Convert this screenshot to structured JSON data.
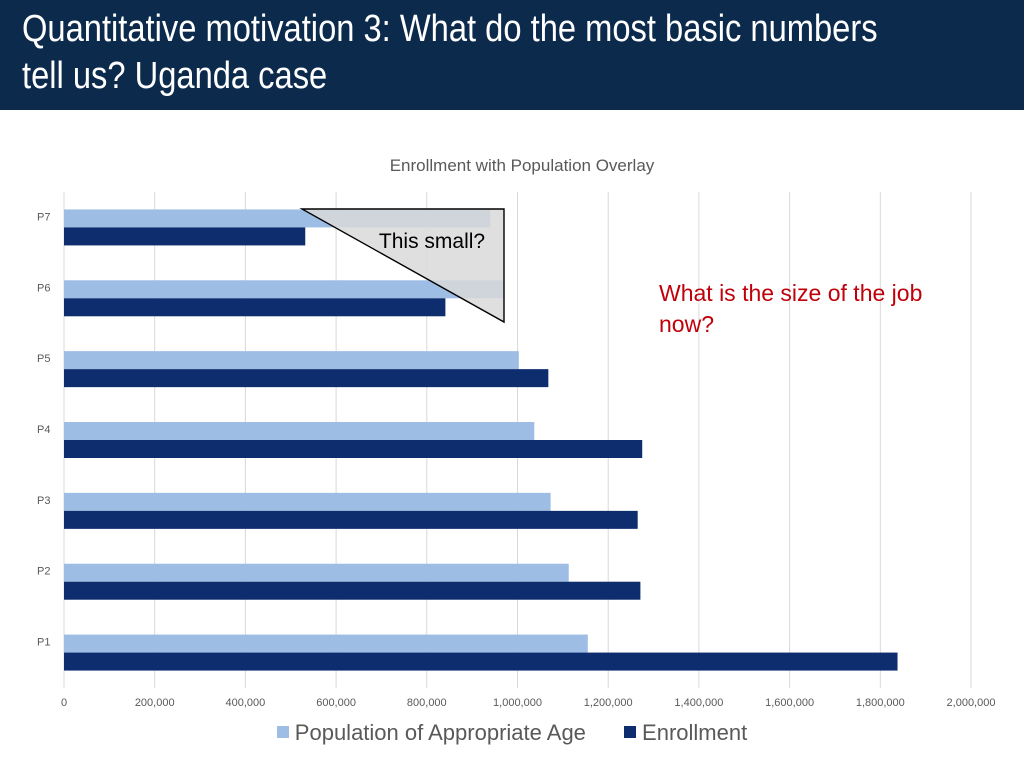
{
  "header": {
    "title_line1": "Quantitative motivation 3: What do the most basic numbers",
    "title_line2": "tell us? Uganda case"
  },
  "colors": {
    "header_bg": "#0c2a4c",
    "population": "#9dbde5",
    "enrollment": "#0e2d6e",
    "annotation": "#c0000a",
    "triangle_fill": "#d9d9d9"
  },
  "annotations": {
    "triangle_label": "This small?",
    "callout": "What is the size of the job now?"
  },
  "chart_data": {
    "type": "bar",
    "orientation": "horizontal",
    "title": "Enrollment with Population Overlay",
    "categories": [
      "P1",
      "P2",
      "P3",
      "P4",
      "P5",
      "P6",
      "P7"
    ],
    "series": [
      {
        "name": "Population of Appropriate Age",
        "color": "#9dbde5",
        "values": [
          1155000,
          1113000,
          1073000,
          1037000,
          1003000,
          970000,
          940000
        ]
      },
      {
        "name": "Enrollment",
        "color": "#0e2d6e",
        "values": [
          1838000,
          1271000,
          1265000,
          1275000,
          1068000,
          841000,
          532000
        ]
      }
    ],
    "xlim": [
      0,
      2000000
    ],
    "xticks": [
      "0",
      "200,000",
      "400,000",
      "600,000",
      "800,000",
      "1,000,000",
      "1,200,000",
      "1,400,000",
      "1,600,000",
      "1,800,000",
      "2,000,000"
    ],
    "grid": true,
    "legend_position": "bottom"
  }
}
